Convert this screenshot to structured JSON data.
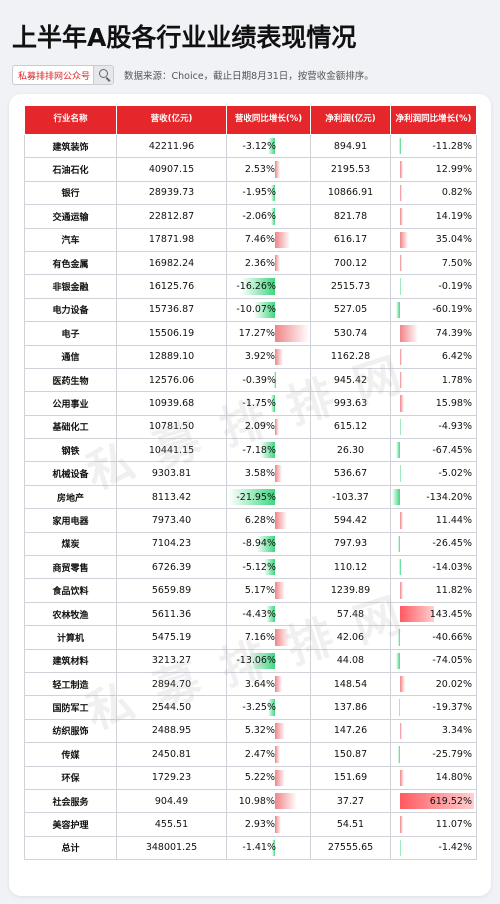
{
  "header": {
    "title": "上半年A股各行业业绩表现情况",
    "search_text": "私募排排网公众号",
    "source_note": "数据来源：Choice，截止日期8月31日，按营收金额排序。"
  },
  "colors": {
    "accent": "#e5262b",
    "positive": "#f08488",
    "negative": "#3fd67f"
  },
  "chart_data": {
    "type": "table",
    "columns": [
      "行业名称",
      "营收(亿元)",
      "营收同比增长(%)",
      "净利润(亿元)",
      "净利润同比增长(%)"
    ],
    "rows": [
      {
        "name": "建筑装饰",
        "rev": "42211.96",
        "rev_g": "-3.12%",
        "rev_gv": -3.12,
        "np": "894.91",
        "np_g": "-11.28%",
        "np_gv": -11.28
      },
      {
        "name": "石油石化",
        "rev": "40907.15",
        "rev_g": "2.53%",
        "rev_gv": 2.53,
        "np": "2195.53",
        "np_g": "12.99%",
        "np_gv": 12.99
      },
      {
        "name": "银行",
        "rev": "28939.73",
        "rev_g": "-1.95%",
        "rev_gv": -1.95,
        "np": "10866.91",
        "np_g": "0.82%",
        "np_gv": 0.82
      },
      {
        "name": "交通运输",
        "rev": "22812.87",
        "rev_g": "-2.06%",
        "rev_gv": -2.06,
        "np": "821.78",
        "np_g": "14.19%",
        "np_gv": 14.19
      },
      {
        "name": "汽车",
        "rev": "17871.98",
        "rev_g": "7.46%",
        "rev_gv": 7.46,
        "np": "616.17",
        "np_g": "35.04%",
        "np_gv": 35.04
      },
      {
        "name": "有色金属",
        "rev": "16982.24",
        "rev_g": "2.36%",
        "rev_gv": 2.36,
        "np": "700.12",
        "np_g": "7.50%",
        "np_gv": 7.5
      },
      {
        "name": "非银金融",
        "rev": "16125.76",
        "rev_g": "-16.26%",
        "rev_gv": -16.26,
        "np": "2515.73",
        "np_g": "-0.19%",
        "np_gv": -0.19
      },
      {
        "name": "电力设备",
        "rev": "15736.87",
        "rev_g": "-10.07%",
        "rev_gv": -10.07,
        "np": "527.05",
        "np_g": "-60.19%",
        "np_gv": -60.19
      },
      {
        "name": "电子",
        "rev": "15506.19",
        "rev_g": "17.27%",
        "rev_gv": 17.27,
        "np": "530.74",
        "np_g": "74.39%",
        "np_gv": 74.39
      },
      {
        "name": "通信",
        "rev": "12889.10",
        "rev_g": "3.92%",
        "rev_gv": 3.92,
        "np": "1162.28",
        "np_g": "6.42%",
        "np_gv": 6.42
      },
      {
        "name": "医药生物",
        "rev": "12576.06",
        "rev_g": "-0.39%",
        "rev_gv": -0.39,
        "np": "945.42",
        "np_g": "1.78%",
        "np_gv": 1.78
      },
      {
        "name": "公用事业",
        "rev": "10939.68",
        "rev_g": "-1.75%",
        "rev_gv": -1.75,
        "np": "993.63",
        "np_g": "15.98%",
        "np_gv": 15.98
      },
      {
        "name": "基础化工",
        "rev": "10781.50",
        "rev_g": "2.09%",
        "rev_gv": 2.09,
        "np": "615.12",
        "np_g": "-4.93%",
        "np_gv": -4.93
      },
      {
        "name": "钢铁",
        "rev": "10441.15",
        "rev_g": "-7.18%",
        "rev_gv": -7.18,
        "np": "26.30",
        "np_g": "-67.45%",
        "np_gv": -67.45
      },
      {
        "name": "机械设备",
        "rev": "9303.81",
        "rev_g": "3.58%",
        "rev_gv": 3.58,
        "np": "536.67",
        "np_g": "-5.02%",
        "np_gv": -5.02
      },
      {
        "name": "房地产",
        "rev": "8113.42",
        "rev_g": "-21.95%",
        "rev_gv": -21.95,
        "np": "-103.37",
        "np_g": "-134.20%",
        "np_gv": -134.2
      },
      {
        "name": "家用电器",
        "rev": "7973.40",
        "rev_g": "6.28%",
        "rev_gv": 6.28,
        "np": "594.42",
        "np_g": "11.44%",
        "np_gv": 11.44
      },
      {
        "name": "煤炭",
        "rev": "7104.23",
        "rev_g": "-8.94%",
        "rev_gv": -8.94,
        "np": "797.93",
        "np_g": "-26.45%",
        "np_gv": -26.45
      },
      {
        "name": "商贸零售",
        "rev": "6726.39",
        "rev_g": "-5.12%",
        "rev_gv": -5.12,
        "np": "110.12",
        "np_g": "-14.03%",
        "np_gv": -14.03
      },
      {
        "name": "食品饮料",
        "rev": "5659.89",
        "rev_g": "5.17%",
        "rev_gv": 5.17,
        "np": "1239.89",
        "np_g": "11.82%",
        "np_gv": 11.82
      },
      {
        "name": "农林牧渔",
        "rev": "5611.36",
        "rev_g": "-4.43%",
        "rev_gv": -4.43,
        "np": "57.48",
        "np_g": "143.45%",
        "np_gv": 143.45
      },
      {
        "name": "计算机",
        "rev": "5475.19",
        "rev_g": "7.16%",
        "rev_gv": 7.16,
        "np": "42.06",
        "np_g": "-40.66%",
        "np_gv": -40.66
      },
      {
        "name": "建筑材料",
        "rev": "3213.27",
        "rev_g": "-13.06%",
        "rev_gv": -13.06,
        "np": "44.08",
        "np_g": "-74.05%",
        "np_gv": -74.05
      },
      {
        "name": "轻工制造",
        "rev": "2894.70",
        "rev_g": "3.64%",
        "rev_gv": 3.64,
        "np": "148.54",
        "np_g": "20.02%",
        "np_gv": 20.02
      },
      {
        "name": "国防军工",
        "rev": "2544.50",
        "rev_g": "-3.25%",
        "rev_gv": -3.25,
        "np": "137.86",
        "np_g": "-19.37%",
        "np_gv": -19.37
      },
      {
        "name": "纺织服饰",
        "rev": "2488.95",
        "rev_g": "5.32%",
        "rev_gv": 5.32,
        "np": "147.26",
        "np_g": "3.34%",
        "np_gv": 3.34
      },
      {
        "name": "传媒",
        "rev": "2450.81",
        "rev_g": "2.47%",
        "rev_gv": 2.47,
        "np": "150.87",
        "np_g": "-25.79%",
        "np_gv": -25.79
      },
      {
        "name": "环保",
        "rev": "1729.23",
        "rev_g": "5.22%",
        "rev_gv": 5.22,
        "np": "151.69",
        "np_g": "14.80%",
        "np_gv": 14.8
      },
      {
        "name": "社会服务",
        "rev": "904.49",
        "rev_g": "10.98%",
        "rev_gv": 10.98,
        "np": "37.27",
        "np_g": "619.52%",
        "np_gv": 619.52
      },
      {
        "name": "美容护理",
        "rev": "455.51",
        "rev_g": "2.93%",
        "rev_gv": 2.93,
        "np": "54.51",
        "np_g": "11.07%",
        "np_gv": 11.07
      },
      {
        "name": "总计",
        "rev": "348001.25",
        "rev_g": "-1.41%",
        "rev_gv": -1.41,
        "np": "27555.65",
        "np_g": "-1.42%",
        "np_gv": -1.42
      }
    ]
  }
}
